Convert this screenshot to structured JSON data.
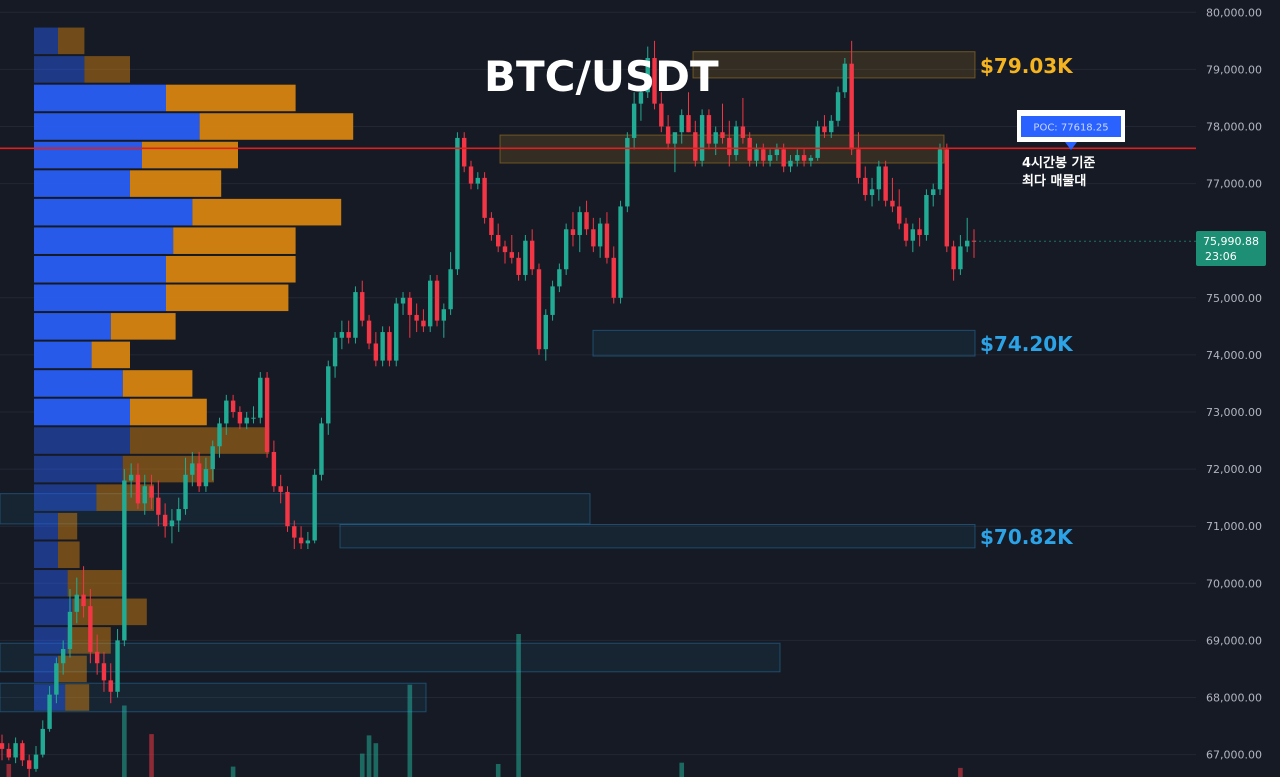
{
  "title": "BTC/USDT",
  "colors": {
    "background": "#161a25",
    "grid": "#232734",
    "bullish": "#22ab94",
    "bearish": "#f23645",
    "volume_profile_buy": "#2962ff",
    "volume_profile_sell": "#e08a0e",
    "poc_line": "#e01f1f",
    "resistance_zone": "#f5b31f",
    "support_zone": "#2ba3e6",
    "axis_text": "#b2b5be",
    "price_tag": "#1d8f74"
  },
  "price_axis": {
    "labels": [
      "80,000.00",
      "79,000.00",
      "78,000.00",
      "77,000.00",
      "75,000.00",
      "74,000.00",
      "73,000.00",
      "72,000.00",
      "71,000.00",
      "70,000.00",
      "69,000.00",
      "68,000.00",
      "67,000.00"
    ]
  },
  "current_price": {
    "value": "75,990.88",
    "countdown": "23:06"
  },
  "poc": {
    "label": "POC: 77618.25",
    "note_line1": "4시간봉 기준",
    "note_line2": "최다 매물대"
  },
  "zones": [
    {
      "label": "$79.03K",
      "kind": "resistance"
    },
    {
      "label": "$74.20K",
      "kind": "support"
    },
    {
      "label": "$70.82K",
      "kind": "support"
    }
  ],
  "icons": {
    "poc_pointer": "triangle-down-icon"
  },
  "chart_data": {
    "type": "candlestick",
    "title": "BTC/USDT",
    "ylim": [
      66700,
      80200
    ],
    "poc_price": 77618.25,
    "current_price": 75990.88,
    "zones": [
      {
        "label": "$79.03K",
        "low": 78850,
        "high": 79310
      },
      {
        "label": "$74.20K",
        "low": 73980,
        "high": 74430
      },
      {
        "label": "$70.82K",
        "low": 70620,
        "high": 71030
      },
      {
        "label": "",
        "low": 77360,
        "high": 77850
      },
      {
        "label": "",
        "low": 71040,
        "high": 71570
      },
      {
        "label": "",
        "low": 68450,
        "high": 68950
      },
      {
        "label": "",
        "low": 67750,
        "high": 68250
      }
    ],
    "candles": [
      [
        67200,
        67350,
        66900,
        67100
      ],
      [
        67100,
        67200,
        66900,
        66950
      ],
      [
        66950,
        67300,
        66850,
        67200
      ],
      [
        67200,
        67250,
        66800,
        66900
      ],
      [
        66900,
        67000,
        66600,
        66750
      ],
      [
        66750,
        67150,
        66700,
        67000
      ],
      [
        67000,
        67600,
        66950,
        67450
      ],
      [
        67450,
        68200,
        67400,
        68050
      ],
      [
        68050,
        68700,
        67900,
        68600
      ],
      [
        68600,
        69000,
        68400,
        68850
      ],
      [
        68850,
        69900,
        68700,
        69500
      ],
      [
        69500,
        70100,
        69300,
        69800
      ],
      [
        69800,
        70300,
        69400,
        69600
      ],
      [
        69600,
        69900,
        68600,
        68800
      ],
      [
        68800,
        69100,
        68400,
        68600
      ],
      [
        68600,
        68800,
        68100,
        68300
      ],
      [
        68300,
        68600,
        67900,
        68100
      ],
      [
        68100,
        69200,
        68000,
        69000
      ],
      [
        69000,
        72000,
        68900,
        71800
      ],
      [
        71800,
        72100,
        71500,
        71900
      ],
      [
        71900,
        72100,
        71300,
        71400
      ],
      [
        71400,
        71900,
        71200,
        71700
      ],
      [
        71700,
        71900,
        71300,
        71500
      ],
      [
        71500,
        71800,
        71000,
        71200
      ],
      [
        71200,
        71400,
        70800,
        71000
      ],
      [
        71000,
        71300,
        70700,
        71100
      ],
      [
        71100,
        71500,
        70900,
        71300
      ],
      [
        71300,
        72200,
        71200,
        71900
      ],
      [
        71900,
        72300,
        71700,
        72100
      ],
      [
        72100,
        72300,
        71600,
        71700
      ],
      [
        71700,
        72200,
        71600,
        72000
      ],
      [
        72000,
        72500,
        71800,
        72400
      ],
      [
        72400,
        72900,
        72200,
        72800
      ],
      [
        72800,
        73300,
        72600,
        73200
      ],
      [
        73200,
        73300,
        72900,
        73000
      ],
      [
        73000,
        73100,
        72700,
        72800
      ],
      [
        72800,
        73000,
        72700,
        72900
      ],
      [
        72900,
        73100,
        72800,
        72900
      ],
      [
        72900,
        73700,
        72800,
        73600
      ],
      [
        73600,
        73700,
        72200,
        72300
      ],
      [
        72300,
        72500,
        71600,
        71700
      ],
      [
        71700,
        71900,
        71400,
        71600
      ],
      [
        71600,
        71700,
        70900,
        71000
      ],
      [
        71000,
        71100,
        70600,
        70800
      ],
      [
        70800,
        71000,
        70600,
        70700
      ],
      [
        70700,
        70900,
        70600,
        70750
      ],
      [
        70750,
        72000,
        70700,
        71900
      ],
      [
        71900,
        72900,
        71800,
        72800
      ],
      [
        72800,
        73900,
        72600,
        73800
      ],
      [
        73800,
        74400,
        73600,
        74300
      ],
      [
        74300,
        74600,
        74100,
        74400
      ],
      [
        74400,
        74600,
        74200,
        74300
      ],
      [
        74300,
        75200,
        74200,
        75100
      ],
      [
        75100,
        75300,
        74500,
        74600
      ],
      [
        74600,
        74700,
        74100,
        74200
      ],
      [
        74200,
        74400,
        73800,
        73900
      ],
      [
        73900,
        74500,
        73800,
        74400
      ],
      [
        74400,
        74500,
        73800,
        73900
      ],
      [
        73900,
        75000,
        73800,
        74900
      ],
      [
        74900,
        75100,
        74700,
        75000
      ],
      [
        75000,
        75100,
        74300,
        74700
      ],
      [
        74700,
        74900,
        74400,
        74600
      ],
      [
        74600,
        74800,
        74400,
        74500
      ],
      [
        74500,
        75400,
        74400,
        75300
      ],
      [
        75300,
        75400,
        74500,
        74600
      ],
      [
        74600,
        74900,
        74300,
        74800
      ],
      [
        74800,
        75800,
        74700,
        75500
      ],
      [
        75500,
        77900,
        75400,
        77800
      ],
      [
        77800,
        77900,
        77200,
        77300
      ],
      [
        77300,
        77400,
        76900,
        77000
      ],
      [
        77000,
        77200,
        76900,
        77100
      ],
      [
        77100,
        77200,
        76300,
        76400
      ],
      [
        76400,
        76500,
        76000,
        76100
      ],
      [
        76100,
        76300,
        75800,
        75900
      ],
      [
        75900,
        76000,
        75600,
        75800
      ],
      [
        75800,
        76100,
        75600,
        75700
      ],
      [
        75700,
        75800,
        75300,
        75400
      ],
      [
        75400,
        76100,
        75300,
        76000
      ],
      [
        76000,
        76200,
        75400,
        75500
      ],
      [
        75500,
        75600,
        74000,
        74100
      ],
      [
        74100,
        74800,
        73900,
        74700
      ],
      [
        74700,
        75300,
        74600,
        75200
      ],
      [
        75200,
        75600,
        75100,
        75500
      ],
      [
        75500,
        76300,
        75400,
        76200
      ],
      [
        76200,
        76500,
        75900,
        76100
      ],
      [
        76100,
        76600,
        75800,
        76500
      ],
      [
        76500,
        76700,
        76100,
        76200
      ],
      [
        76200,
        76400,
        75800,
        75900
      ],
      [
        75900,
        76400,
        75700,
        76300
      ],
      [
        76300,
        76500,
        75600,
        75700
      ],
      [
        75700,
        75900,
        74900,
        75000
      ],
      [
        75000,
        76700,
        74900,
        76600
      ],
      [
        76600,
        77900,
        76500,
        77800
      ],
      [
        77800,
        78600,
        77600,
        78400
      ],
      [
        78400,
        78700,
        78100,
        78600
      ],
      [
        78600,
        79400,
        78500,
        79200
      ],
      [
        79200,
        79500,
        78300,
        78400
      ],
      [
        78400,
        78600,
        77900,
        78000
      ],
      [
        78000,
        78200,
        77600,
        77700
      ],
      [
        77700,
        77800,
        77200,
        77900
      ],
      [
        77900,
        78300,
        77700,
        78200
      ],
      [
        78200,
        78600,
        77900,
        77900
      ],
      [
        77900,
        78100,
        77300,
        77400
      ],
      [
        77400,
        78300,
        77300,
        78200
      ],
      [
        78200,
        78300,
        77600,
        77700
      ],
      [
        77700,
        78000,
        77500,
        77900
      ],
      [
        77900,
        78400,
        77700,
        77800
      ],
      [
        77800,
        78100,
        77300,
        77500
      ],
      [
        77500,
        78100,
        77400,
        78000
      ],
      [
        78000,
        78500,
        77700,
        77800
      ],
      [
        77800,
        77900,
        77300,
        77400
      ],
      [
        77400,
        77700,
        77300,
        77600
      ],
      [
        77600,
        77700,
        77300,
        77400
      ],
      [
        77400,
        77600,
        77300,
        77500
      ],
      [
        77500,
        77700,
        77400,
        77600
      ],
      [
        77600,
        77700,
        77200,
        77300
      ],
      [
        77300,
        77500,
        77200,
        77400
      ],
      [
        77400,
        77600,
        77300,
        77500
      ],
      [
        77500,
        77600,
        77300,
        77400
      ],
      [
        77400,
        77500,
        77300,
        77450
      ],
      [
        77450,
        78100,
        77400,
        78000
      ],
      [
        78000,
        78200,
        77800,
        77900
      ],
      [
        77900,
        78200,
        77800,
        78100
      ],
      [
        78100,
        78700,
        78000,
        78600
      ],
      [
        78600,
        79200,
        78500,
        79100
      ],
      [
        79100,
        79500,
        77500,
        77600
      ],
      [
        77600,
        77900,
        77000,
        77100
      ],
      [
        77100,
        77300,
        76700,
        76800
      ],
      [
        76800,
        77100,
        76600,
        76900
      ],
      [
        76900,
        77400,
        76700,
        77300
      ],
      [
        77300,
        77400,
        76600,
        76700
      ],
      [
        76700,
        77100,
        76500,
        76600
      ],
      [
        76600,
        76900,
        76200,
        76300
      ],
      [
        76300,
        76400,
        75900,
        76000
      ],
      [
        76000,
        76300,
        75800,
        76200
      ],
      [
        76200,
        76400,
        75900,
        76100
      ],
      [
        76100,
        76900,
        76000,
        76800
      ],
      [
        76800,
        77000,
        76600,
        76900
      ],
      [
        76900,
        77700,
        76800,
        77600
      ],
      [
        77600,
        77700,
        75800,
        75900
      ],
      [
        75900,
        76000,
        75300,
        75500
      ],
      [
        75500,
        76100,
        75400,
        75900
      ],
      [
        75900,
        76400,
        75800,
        76000
      ],
      [
        76000,
        76200,
        75700,
        75990
      ]
    ],
    "volume_profile": [
      {
        "price": 79500,
        "buy": 1.0,
        "sell": 1.1
      },
      {
        "price": 79000,
        "buy": 2.1,
        "sell": 1.9
      },
      {
        "price": 78500,
        "buy": 5.5,
        "sell": 5.4
      },
      {
        "price": 78000,
        "buy": 6.9,
        "sell": 6.4
      },
      {
        "price": 77500,
        "buy": 4.5,
        "sell": 4.0
      },
      {
        "price": 77000,
        "buy": 4.0,
        "sell": 3.8
      },
      {
        "price": 76500,
        "buy": 6.6,
        "sell": 6.2
      },
      {
        "price": 76000,
        "buy": 5.8,
        "sell": 5.1
      },
      {
        "price": 75500,
        "buy": 5.5,
        "sell": 5.4
      },
      {
        "price": 75000,
        "buy": 5.5,
        "sell": 5.1
      },
      {
        "price": 74500,
        "buy": 3.2,
        "sell": 2.7
      },
      {
        "price": 74000,
        "buy": 2.4,
        "sell": 1.6
      },
      {
        "price": 73500,
        "buy": 3.7,
        "sell": 2.9
      },
      {
        "price": 73000,
        "buy": 4.0,
        "sell": 3.2
      },
      {
        "price": 72500,
        "buy": 4.0,
        "sell": 5.8
      },
      {
        "price": 72000,
        "buy": 3.7,
        "sell": 3.8
      },
      {
        "price": 71500,
        "buy": 2.6,
        "sell": 2.4
      },
      {
        "price": 71000,
        "buy": 1.0,
        "sell": 0.8
      },
      {
        "price": 70500,
        "buy": 1.0,
        "sell": 0.9
      },
      {
        "price": 70000,
        "buy": 1.4,
        "sell": 2.3
      },
      {
        "price": 69500,
        "buy": 1.6,
        "sell": 3.1
      },
      {
        "price": 69000,
        "buy": 1.4,
        "sell": 1.8
      },
      {
        "price": 68500,
        "buy": 1.0,
        "sell": 1.2
      },
      {
        "price": 68000,
        "buy": 1.3,
        "sell": 1.0
      }
    ],
    "volume": [
      {
        "candle": 1,
        "value": 1.0,
        "dir": "down"
      },
      {
        "candle": 18,
        "value": 5.5,
        "dir": "up"
      },
      {
        "candle": 22,
        "value": 3.3,
        "dir": "down"
      },
      {
        "candle": 34,
        "value": 0.8,
        "dir": "up"
      },
      {
        "candle": 53,
        "value": 1.8,
        "dir": "up"
      },
      {
        "candle": 54,
        "value": 3.2,
        "dir": "up"
      },
      {
        "candle": 55,
        "value": 2.6,
        "dir": "up"
      },
      {
        "candle": 60,
        "value": 7.1,
        "dir": "up"
      },
      {
        "candle": 73,
        "value": 1.0,
        "dir": "up"
      },
      {
        "candle": 76,
        "value": 11.0,
        "dir": "up"
      },
      {
        "candle": 100,
        "value": 1.1,
        "dir": "up"
      },
      {
        "candle": 141,
        "value": 0.7,
        "dir": "down"
      }
    ]
  }
}
